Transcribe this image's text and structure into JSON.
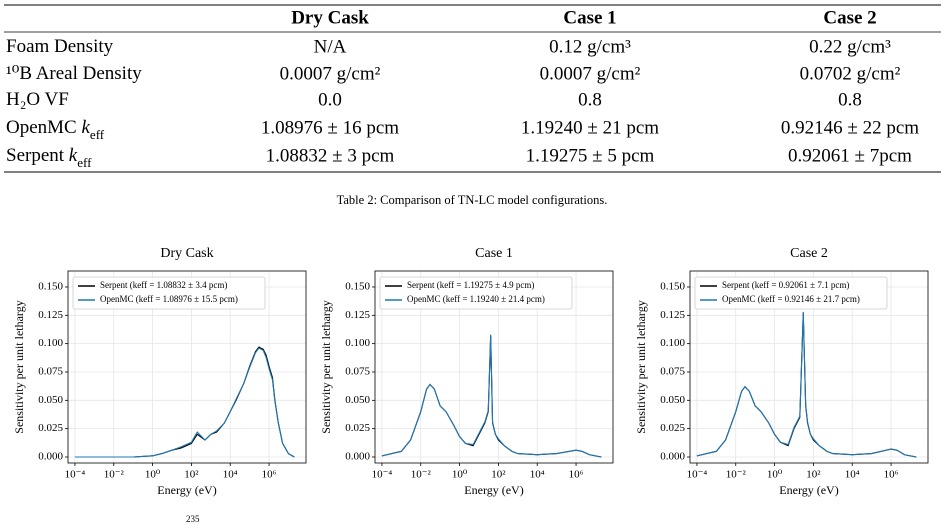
{
  "table": {
    "header": [
      "Dry Cask",
      "Case 1",
      "Case 2"
    ],
    "rows": [
      {
        "label": [
          "Foam Density"
        ],
        "cells": [
          "N/A",
          "0.12 g/cm³",
          "0.22 g/cm³"
        ]
      },
      {
        "label": [
          "¹⁰B Areal Density"
        ],
        "cells": [
          "0.0007 g/cm²",
          "0.0007 g/cm²",
          "0.0702 g/cm²"
        ]
      },
      {
        "label": [
          "H₂O VF"
        ],
        "cells": [
          "0.0",
          "0.8",
          "0.8"
        ]
      },
      {
        "label": [
          "OpenMC ",
          "k",
          "eff"
        ],
        "cells": [
          "1.08976 ± 16 pcm",
          "1.19240 ± 21 pcm",
          "0.92146 ± 22 pcm"
        ]
      },
      {
        "label": [
          "Serpent ",
          "k",
          "eff"
        ],
        "cells": [
          "1.08832 ± 3 pcm",
          "1.19275 ± 5 pcm",
          "0.92061 ± 7pcm"
        ]
      }
    ]
  },
  "caption": "Table 2: Comparison of TN-LC model configurations.",
  "footer_fragment": "235",
  "charts": [
    {
      "type": "line",
      "title": "Dry Cask",
      "xlabel": "Energy (eV)",
      "ylabel": "Sensitivity per unit lethargy",
      "log_x": true,
      "grid": true,
      "legend": "upper left",
      "xlim": [
        4.4e-05,
        80000000
      ],
      "ylim": [
        -0.0053,
        0.1641
      ],
      "xticks": [
        {
          "value": 0.0001,
          "label": "10⁻⁴"
        },
        {
          "value": 0.01,
          "label": "10⁻²"
        },
        {
          "value": 1,
          "label": "10⁰"
        },
        {
          "value": 100,
          "label": "10²"
        },
        {
          "value": 10000,
          "label": "10⁴"
        },
        {
          "value": 1000000,
          "label": "10⁶"
        }
      ],
      "yticks": [
        {
          "value": 0,
          "label": "0.000"
        },
        {
          "value": 0.025,
          "label": "0.025"
        },
        {
          "value": 0.05,
          "label": "0.050"
        },
        {
          "value": 0.075,
          "label": "0.075"
        },
        {
          "value": 0.1,
          "label": "0.100"
        },
        {
          "value": 0.125,
          "label": "0.125"
        },
        {
          "value": 0.15,
          "label": "0.150"
        }
      ],
      "x": [
        0.0001,
        0.001,
        0.01,
        0.1,
        1,
        3,
        10,
        30,
        100,
        200,
        500,
        1000,
        2000,
        5000,
        10000,
        20000,
        50000,
        100000,
        200000,
        300000,
        500000,
        700000,
        1000000,
        1500000,
        2000000,
        3000000,
        5000000,
        10000000,
        20000000
      ],
      "series": [
        {
          "name": "Serpent (keff = 1.08832 ± 3.4 pcm)",
          "color": "#000000",
          "values": [
            0,
            0,
            0,
            0,
            0.001,
            0.003,
            0.006,
            0.008,
            0.012,
            0.02,
            0.015,
            0.02,
            0.022,
            0.03,
            0.04,
            0.05,
            0.065,
            0.08,
            0.093,
            0.097,
            0.095,
            0.09,
            0.08,
            0.07,
            0.05,
            0.03,
            0.012,
            0.003,
            0
          ]
        },
        {
          "name": "OpenMC (keff = 1.08976 ± 15.5 pcm)",
          "color": "#1f77b4",
          "values": [
            0,
            0,
            0,
            0,
            0.001,
            0.003,
            0.006,
            0.009,
            0.013,
            0.022,
            0.015,
            0.02,
            0.023,
            0.03,
            0.04,
            0.051,
            0.065,
            0.079,
            0.092,
            0.096,
            0.094,
            0.088,
            0.078,
            0.068,
            0.049,
            0.03,
            0.012,
            0.003,
            0
          ]
        }
      ]
    },
    {
      "type": "line",
      "title": "Case 1",
      "xlabel": "Energy (eV)",
      "ylabel": "Sensitivity per unit lethargy",
      "log_x": true,
      "grid": true,
      "legend": "upper left",
      "xlim": [
        4.4e-05,
        80000000
      ],
      "ylim": [
        -0.0053,
        0.1641
      ],
      "xticks": [
        {
          "value": 0.0001,
          "label": "10⁻⁴"
        },
        {
          "value": 0.01,
          "label": "10⁻²"
        },
        {
          "value": 1,
          "label": "10⁰"
        },
        {
          "value": 100,
          "label": "10²"
        },
        {
          "value": 10000,
          "label": "10⁴"
        },
        {
          "value": 1000000,
          "label": "10⁶"
        }
      ],
      "yticks": [
        {
          "value": 0,
          "label": "0.000"
        },
        {
          "value": 0.025,
          "label": "0.025"
        },
        {
          "value": 0.05,
          "label": "0.050"
        },
        {
          "value": 0.075,
          "label": "0.075"
        },
        {
          "value": 0.1,
          "label": "0.100"
        },
        {
          "value": 0.125,
          "label": "0.125"
        },
        {
          "value": 0.15,
          "label": "0.150"
        }
      ],
      "x": [
        0.0001,
        0.001,
        0.003,
        0.01,
        0.02,
        0.03,
        0.05,
        0.1,
        0.2,
        0.5,
        1,
        2,
        5,
        10,
        20,
        30,
        40,
        50,
        70,
        100,
        200,
        500,
        1000,
        10000,
        100000,
        1000000,
        2000000,
        5000000,
        10000000,
        20000000
      ],
      "series": [
        {
          "name": "Serpent (keff = 1.19275 ± 4.9 pcm)",
          "color": "#000000",
          "values": [
            0.001,
            0.005,
            0.015,
            0.04,
            0.06,
            0.064,
            0.06,
            0.045,
            0.04,
            0.028,
            0.018,
            0.012,
            0.01,
            0.02,
            0.03,
            0.04,
            0.107,
            0.03,
            0.02,
            0.015,
            0.01,
            0.005,
            0.003,
            0.002,
            0.003,
            0.006,
            0.005,
            0.002,
            0.001,
            0
          ]
        },
        {
          "name": "OpenMC (keff = 1.19240 ± 21.4 pcm)",
          "color": "#1f77b4",
          "values": [
            0.001,
            0.005,
            0.015,
            0.04,
            0.06,
            0.064,
            0.06,
            0.045,
            0.04,
            0.028,
            0.018,
            0.012,
            0.011,
            0.021,
            0.031,
            0.041,
            0.108,
            0.031,
            0.02,
            0.016,
            0.01,
            0.005,
            0.003,
            0.002,
            0.003,
            0.006,
            0.005,
            0.002,
            0.001,
            0
          ]
        }
      ]
    },
    {
      "type": "line",
      "title": "Case 2",
      "xlabel": "Energy (eV)",
      "ylabel": "Sensitivity per unit lethargy",
      "log_x": true,
      "grid": true,
      "legend": "upper left",
      "xlim": [
        4.4e-05,
        80000000
      ],
      "ylim": [
        -0.0053,
        0.1641
      ],
      "xticks": [
        {
          "value": 0.0001,
          "label": "10⁻⁴"
        },
        {
          "value": 0.01,
          "label": "10⁻²"
        },
        {
          "value": 1,
          "label": "10⁰"
        },
        {
          "value": 100,
          "label": "10²"
        },
        {
          "value": 10000,
          "label": "10⁴"
        },
        {
          "value": 1000000,
          "label": "10⁶"
        }
      ],
      "yticks": [
        {
          "value": 0,
          "label": "0.000"
        },
        {
          "value": 0.025,
          "label": "0.025"
        },
        {
          "value": 0.05,
          "label": "0.050"
        },
        {
          "value": 0.075,
          "label": "0.075"
        },
        {
          "value": 0.1,
          "label": "0.100"
        },
        {
          "value": 0.125,
          "label": "0.125"
        },
        {
          "value": 0.15,
          "label": "0.150"
        }
      ],
      "x": [
        0.0001,
        0.001,
        0.003,
        0.01,
        0.02,
        0.03,
        0.05,
        0.1,
        0.2,
        0.5,
        1,
        2,
        5,
        10,
        20,
        30,
        40,
        50,
        70,
        100,
        200,
        500,
        1000,
        10000,
        100000,
        1000000,
        2000000,
        5000000,
        10000000,
        20000000
      ],
      "series": [
        {
          "name": "Serpent (keff = 0.92061 ± 7.1 pcm)",
          "color": "#000000",
          "values": [
            0.001,
            0.005,
            0.015,
            0.04,
            0.058,
            0.062,
            0.058,
            0.045,
            0.04,
            0.03,
            0.02,
            0.013,
            0.01,
            0.025,
            0.035,
            0.127,
            0.045,
            0.03,
            0.02,
            0.015,
            0.01,
            0.005,
            0.003,
            0.002,
            0.003,
            0.007,
            0.006,
            0.002,
            0.001,
            0
          ]
        },
        {
          "name": "OpenMC (keff = 0.92146 ± 21.7 pcm)",
          "color": "#1f77b4",
          "values": [
            0.001,
            0.005,
            0.015,
            0.04,
            0.058,
            0.062,
            0.058,
            0.045,
            0.04,
            0.03,
            0.02,
            0.013,
            0.011,
            0.026,
            0.036,
            0.128,
            0.046,
            0.031,
            0.02,
            0.016,
            0.01,
            0.005,
            0.003,
            0.002,
            0.003,
            0.007,
            0.006,
            0.002,
            0.001,
            0
          ]
        }
      ]
    }
  ]
}
